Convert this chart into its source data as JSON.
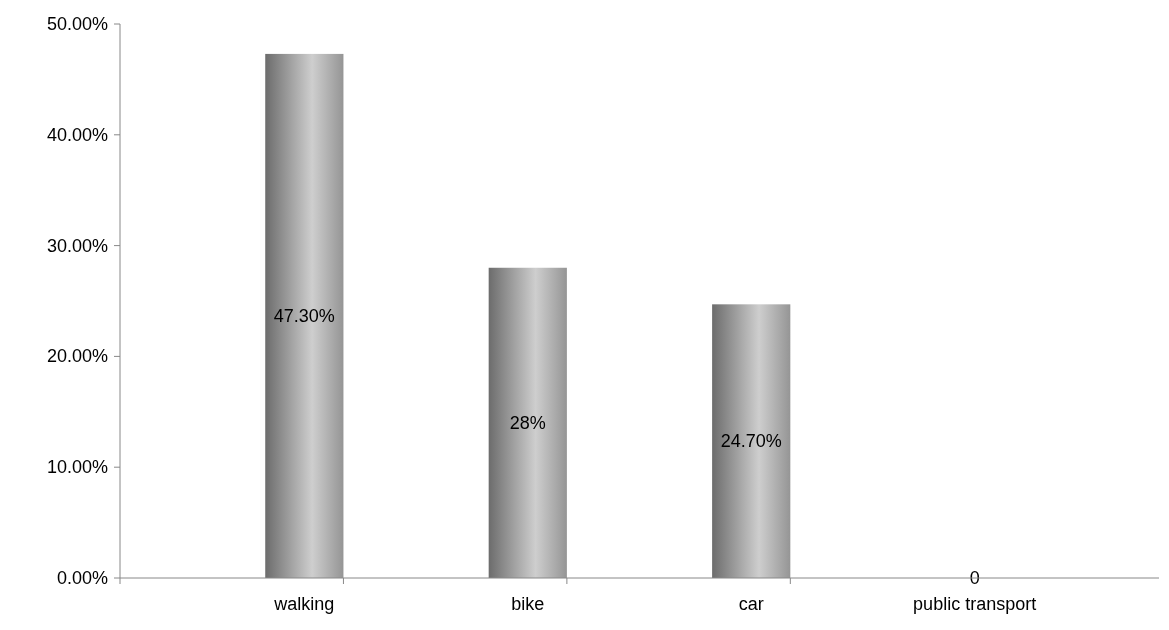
{
  "chart_data": {
    "type": "bar",
    "categories": [
      "walking",
      "bike",
      "car",
      "public transport"
    ],
    "values": [
      47.3,
      28,
      24.7,
      0
    ],
    "value_labels": [
      "47.30%",
      "28%",
      "24.70%",
      "0"
    ],
    "colors": [
      "#a6a6a6",
      "#a6a6a6",
      "#a6a6a6",
      "#8497b0"
    ],
    "ylim": [
      0,
      50
    ],
    "yticks": [
      {
        "value": 0,
        "label": "0.00%"
      },
      {
        "value": 10,
        "label": "10.00%"
      },
      {
        "value": 20,
        "label": "20.00%"
      },
      {
        "value": 30,
        "label": "30.00%"
      },
      {
        "value": 40,
        "label": "40.00%"
      },
      {
        "value": 50,
        "label": "50.00%"
      }
    ],
    "grid": false
  }
}
